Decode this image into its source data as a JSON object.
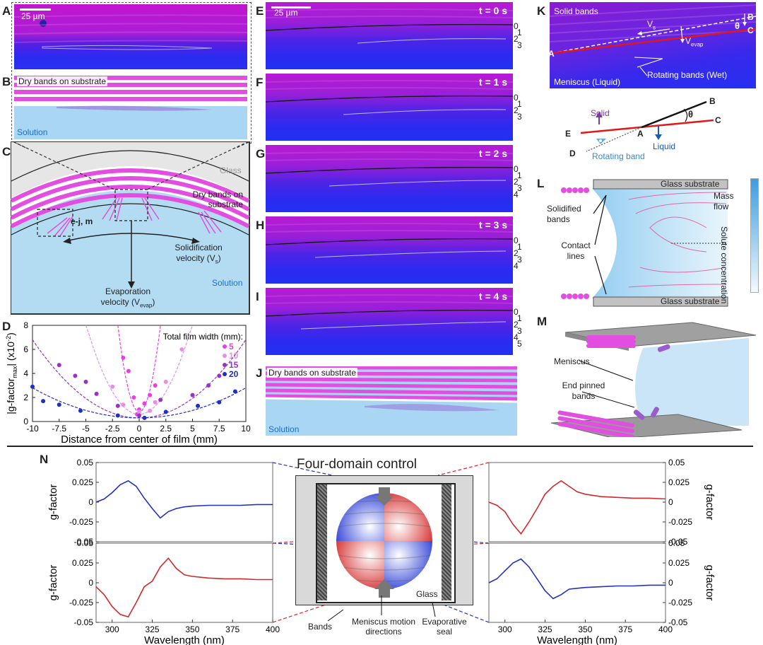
{
  "panel_labels": [
    "A",
    "B",
    "C",
    "D",
    "E",
    "F",
    "G",
    "H",
    "I",
    "J",
    "K",
    "L",
    "M",
    "N"
  ],
  "scale_bar": "25 µm",
  "panel_b": {
    "top_label": "Dry bands on substrate",
    "bottom_label": "Solution"
  },
  "panel_c": {
    "glass": "Glass",
    "dry_bands": "Dry bands on substrate",
    "inset": "e-j, m",
    "solidification": "Solidification velocity (V",
    "solidification_sub": "s",
    "evaporation": "Evaporation velocity (V",
    "evaporation_sub": "evap",
    "solution": "Solution"
  },
  "panel_e_i": {
    "times": [
      "t = 0 s",
      "t = 1 s",
      "t = 2 s",
      "t = 3 s",
      "t = 4 s"
    ],
    "band_numbers": [
      [
        "0",
        "1",
        "2",
        "3"
      ],
      [
        "0",
        "1",
        "2",
        "3"
      ],
      [
        "0",
        "1",
        "2",
        "3",
        "4"
      ],
      [
        "0",
        "1",
        "2",
        "3",
        "4"
      ],
      [
        "0",
        "1",
        "2",
        "3",
        "4",
        "5"
      ]
    ]
  },
  "panel_j": {
    "top_label": "Dry bands on substrate",
    "bottom_label": "Solution"
  },
  "panel_k": {
    "solid_bands": "Solid bands",
    "meniscus": "Meniscus (Liquid)",
    "rotating": "Rotating bands (Wet)",
    "vs": "V",
    "vs_sub": "s",
    "vevap": "V",
    "vevap_sub": "evap",
    "theta": "θ",
    "points": [
      "A",
      "B",
      "C"
    ]
  },
  "panel_k_diagram": {
    "points": [
      "B",
      "C",
      "A",
      "E",
      "D"
    ],
    "solid": "Solid",
    "liquid": "Liquid",
    "rotating": "Rotating band",
    "theta": "θ"
  },
  "panel_l": {
    "glass_top": "Glass substrate",
    "glass_bottom": "Glass substrate",
    "solidified": "Solidified bands",
    "contact": "Contact lines",
    "mass_flow": "Mass flow",
    "solute": "Solute concentration"
  },
  "panel_m": {
    "meniscus": "Meniscus",
    "end_pinned": "End pinned bands"
  },
  "panel_n": {
    "title": "Four-domain control",
    "glass": "Glass",
    "bands": "Bands",
    "meniscus_dir": "Meniscus motion directions",
    "seal": "Evaporative seal"
  },
  "chart_data": [
    {
      "type": "scatter",
      "panel": "D",
      "xlabel": "Distance from center of film (mm)",
      "ylabel": "|g-factor",
      "ylabel_sub": "max",
      "ylabel_tail": "| (x10",
      "ylabel_exp": "-2",
      "ylabel_close": ")",
      "xlim": [
        -10,
        10
      ],
      "ylim": [
        0,
        8
      ],
      "xticks": [
        "-10",
        "-7.5",
        "-5",
        "-2.5",
        "0",
        "2.5",
        "5",
        "7.5",
        "10"
      ],
      "yticks": [
        "0",
        "2",
        "4",
        "6",
        "8"
      ],
      "legend_title": "Total film width (mm):",
      "legend_position": "top-right",
      "series": [
        {
          "name": "5",
          "color": "#e83fe0",
          "points": [
            [
              -1.5,
              5.3
            ],
            [
              -1.0,
              4.2
            ],
            [
              -0.5,
              2.0
            ],
            [
              0.0,
              1.0
            ],
            [
              0.5,
              1.5
            ],
            [
              1.0,
              2.2
            ],
            [
              1.5,
              3.0
            ],
            [
              -0.2,
              0.6
            ]
          ],
          "fit": [
            0,
            0.8,
            1.8
          ]
        },
        {
          "name": "10",
          "color": "#e88ee8",
          "points": [
            [
              -2.5,
              2.9
            ],
            [
              -1.5,
              1.4
            ],
            [
              0.0,
              0.8
            ],
            [
              1.5,
              1.6
            ],
            [
              2.5,
              3.3
            ],
            [
              4.0,
              6.0
            ],
            [
              1.0,
              0.9
            ]
          ],
          "fit": [
            0,
            0.6,
            0.3
          ]
        },
        {
          "name": "15",
          "color": "#9b30c8",
          "points": [
            [
              -7.5,
              4.7
            ],
            [
              -6.0,
              3.8
            ],
            [
              -5.0,
              3.3
            ],
            [
              -4.0,
              2.3
            ],
            [
              -2.0,
              1.3
            ],
            [
              0.0,
              0.5
            ],
            [
              2.0,
              1.8
            ],
            [
              5.0,
              2.2
            ],
            [
              6.5,
              3.0
            ],
            [
              7.5,
              3.8
            ]
          ],
          "fit": [
            0,
            0.3,
            0.065
          ]
        },
        {
          "name": "20",
          "color": "#1f2fc0",
          "points": [
            [
              -10.0,
              2.9
            ],
            [
              -9.0,
              1.7
            ],
            [
              -7.5,
              1.4
            ],
            [
              -5.5,
              0.9
            ],
            [
              -2.0,
              0.5
            ],
            [
              0.5,
              0.3
            ],
            [
              2.5,
              0.8
            ],
            [
              5.5,
              1.3
            ],
            [
              7.5,
              1.6
            ],
            [
              9.0,
              2.5
            ]
          ],
          "fit": [
            0,
            0.3,
            0.025
          ]
        }
      ]
    },
    {
      "type": "line",
      "panel": "N-top-left",
      "xlabel": "",
      "ylabel": "g-factor",
      "xlim": [
        290,
        400
      ],
      "ylim": [
        -0.05,
        0.05
      ],
      "yticks": [
        "0.05",
        "0.025",
        "0",
        "-0.025",
        "-0.05"
      ],
      "color": "#2233bb",
      "x": [
        290,
        295,
        300,
        305,
        310,
        315,
        320,
        325,
        330,
        335,
        340,
        345,
        350,
        360,
        370,
        380,
        390,
        400
      ],
      "y": [
        0.0,
        0.004,
        0.012,
        0.022,
        0.027,
        0.02,
        0.005,
        -0.008,
        -0.02,
        -0.012,
        -0.008,
        -0.006,
        -0.005,
        -0.004,
        -0.004,
        -0.004,
        -0.003,
        -0.003
      ]
    },
    {
      "type": "line",
      "panel": "N-bottom-left",
      "xlabel": "Wavelength (nm)",
      "ylabel": "g-factor",
      "xlim": [
        290,
        400
      ],
      "ylim": [
        -0.05,
        0.05
      ],
      "xticks": [
        "300",
        "325",
        "350",
        "375",
        "400"
      ],
      "yticks": [
        "0.05",
        "0.025",
        "0",
        "-0.025",
        "-0.05"
      ],
      "color": "#d12a2a",
      "x": [
        290,
        295,
        300,
        305,
        310,
        315,
        320,
        325,
        330,
        335,
        340,
        345,
        350,
        360,
        370,
        380,
        390,
        400
      ],
      "y": [
        -0.005,
        -0.015,
        -0.03,
        -0.04,
        -0.043,
        -0.025,
        -0.005,
        0.002,
        0.02,
        0.031,
        0.018,
        0.01,
        0.008,
        0.006,
        0.005,
        0.005,
        0.004,
        0.004
      ]
    },
    {
      "type": "line",
      "panel": "N-top-right",
      "xlabel": "",
      "ylabel": "g-factor",
      "xlim": [
        290,
        400
      ],
      "ylim": [
        -0.05,
        0.05
      ],
      "yticks": [
        "0.05",
        "0.025",
        "0",
        "-0.025",
        "-0.05"
      ],
      "color": "#d12a2a",
      "x": [
        290,
        295,
        300,
        305,
        310,
        315,
        320,
        325,
        330,
        335,
        340,
        345,
        350,
        360,
        370,
        380,
        390,
        400
      ],
      "y": [
        0.0,
        -0.004,
        -0.012,
        -0.028,
        -0.04,
        -0.025,
        -0.008,
        0.01,
        0.02,
        0.027,
        0.02,
        0.013,
        0.01,
        0.007,
        0.006,
        0.005,
        0.005,
        0.004
      ]
    },
    {
      "type": "line",
      "panel": "N-bottom-right",
      "xlabel": "Wavelength (nm)",
      "ylabel": "g-factor",
      "xlim": [
        290,
        400
      ],
      "ylim": [
        -0.05,
        0.05
      ],
      "xticks": [
        "300",
        "325",
        "350",
        "375",
        "400"
      ],
      "yticks": [
        "0.05",
        "0.025",
        "0",
        "-0.025",
        "-0.05"
      ],
      "color": "#2233bb",
      "x": [
        290,
        295,
        300,
        305,
        310,
        315,
        320,
        325,
        330,
        335,
        340,
        345,
        350,
        360,
        370,
        380,
        390,
        400
      ],
      "y": [
        0.0,
        0.005,
        0.015,
        0.025,
        0.03,
        0.02,
        0.005,
        -0.01,
        -0.02,
        -0.015,
        -0.008,
        -0.007,
        -0.006,
        -0.005,
        -0.004,
        -0.004,
        -0.003,
        -0.003
      ]
    }
  ]
}
